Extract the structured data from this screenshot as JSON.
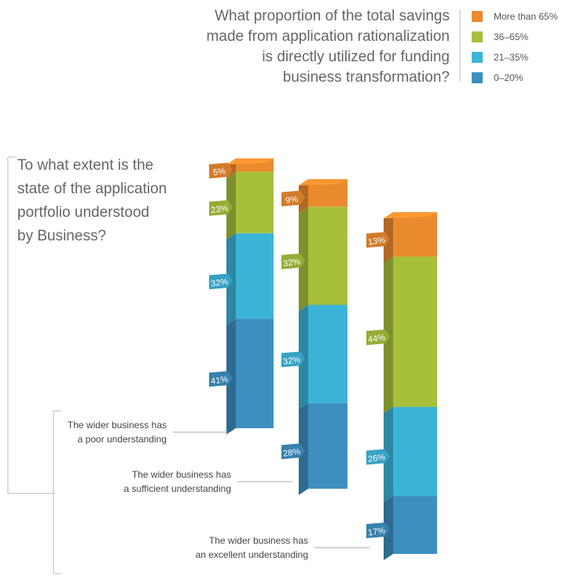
{
  "chart_data": {
    "type": "stacked-bar-3d",
    "title": "What proportion of the total savings\nmade from application rationalization\nis directly utilized for funding\nbusiness transformation?",
    "subtitle": "To what extent is the\nstate of the application\nportfolio understood\nby Business?",
    "categories": [
      "The wider business has\na poor understanding",
      "The wider business has\na sufficient understanding",
      "The wider business has\nan excellent understanding"
    ],
    "series": [
      {
        "name": "0–20%",
        "color": "#3d8fc0",
        "values": [
          41,
          28,
          17
        ],
        "value_labels": [
          "41%",
          "28%",
          "17%"
        ]
      },
      {
        "name": "21–35%",
        "color": "#3cb4d8",
        "values": [
          32,
          32,
          26
        ],
        "value_labels": [
          "32%",
          "32%",
          "26%"
        ]
      },
      {
        "name": "36–65%",
        "color": "#a6c03c",
        "values": [
          23,
          32,
          44
        ],
        "value_labels": [
          "23%",
          "32%",
          "44%"
        ]
      },
      {
        "name": "More than 65%",
        "color": "#ea8a2e",
        "values": [
          5,
          9,
          13
        ],
        "value_labels": [
          "5%",
          "9%",
          "13%"
        ]
      }
    ]
  }
}
